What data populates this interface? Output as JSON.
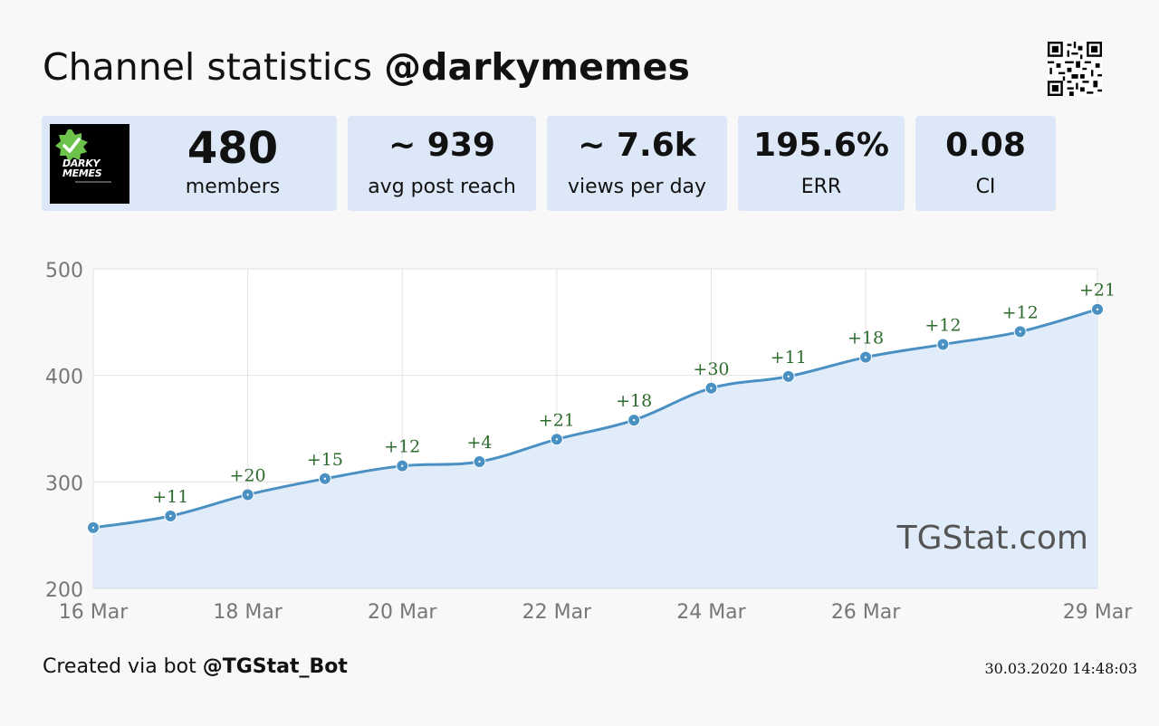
{
  "header": {
    "title_prefix": "Channel statistics",
    "channel_handle": "@darkymemes"
  },
  "stats": [
    {
      "value": "480",
      "label": "members"
    },
    {
      "value": "~ 939",
      "label": "avg post reach"
    },
    {
      "value": "~ 7.6k",
      "label": "views per day"
    },
    {
      "value": "195.6%",
      "label": "ERR"
    },
    {
      "value": "0.08",
      "label": "CI"
    }
  ],
  "logo": {
    "line1": "DARKY",
    "line2": "MEMES"
  },
  "chart_data": {
    "type": "area",
    "title": "",
    "xlabel": "",
    "ylabel": "",
    "ylim": [
      200,
      500
    ],
    "yticks": [
      200,
      300,
      400,
      500
    ],
    "x": [
      "16 Mar",
      "17 Mar",
      "18 Mar",
      "19 Mar",
      "20 Mar",
      "21 Mar",
      "22 Mar",
      "23 Mar",
      "24 Mar",
      "25 Mar",
      "26 Mar",
      "27 Mar",
      "28 Mar",
      "29 Mar"
    ],
    "xtick_labels": [
      "16 Mar",
      "18 Mar",
      "20 Mar",
      "22 Mar",
      "24 Mar",
      "26 Mar",
      "29 Mar"
    ],
    "values": [
      257,
      268,
      288,
      303,
      315,
      319,
      340,
      358,
      388,
      399,
      417,
      429,
      441,
      462
    ],
    "data_labels": [
      "",
      "+11",
      "+20",
      "+15",
      "+12",
      "+4",
      "+21",
      "+18",
      "+30",
      "+11",
      "+18",
      "+12",
      "+12",
      "+21"
    ],
    "watermark": "TGStat.com",
    "grid": true,
    "colors": {
      "line": "#4a90c2",
      "fill": "#deeafb",
      "label": "#2e6b2e",
      "grid": "#e2e2e2"
    }
  },
  "footer": {
    "created_prefix": "Created via bot",
    "bot_handle": "@TGStat_Bot",
    "timestamp": "30.03.2020 14:48:03"
  }
}
